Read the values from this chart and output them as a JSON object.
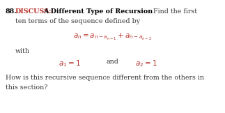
{
  "background_color": "#ffffff",
  "number_text": "88.",
  "discuss_text": "DISCUSS:",
  "title_text": "A Different Type of Recursion",
  "find_text": "Find the first",
  "line2_text": "ten terms of the sequence defined by",
  "formula": "$a_n = a_{n-a_{n-1}} + a_{n-a_{n-2}}$",
  "with_text": "with",
  "cond1": "$a_1 = 1$",
  "and_text": "and",
  "cond2": "$a_2 = 1$",
  "question1": "How is this recursive sequence different from the others in",
  "question2": "this section?",
  "number_color": "#000000",
  "discuss_color": "#b5322a",
  "title_color": "#000000",
  "body_color": "#3a3a3a",
  "formula_color": "#b5322a",
  "fig_width": 3.23,
  "fig_height": 1.62,
  "dpi": 100
}
